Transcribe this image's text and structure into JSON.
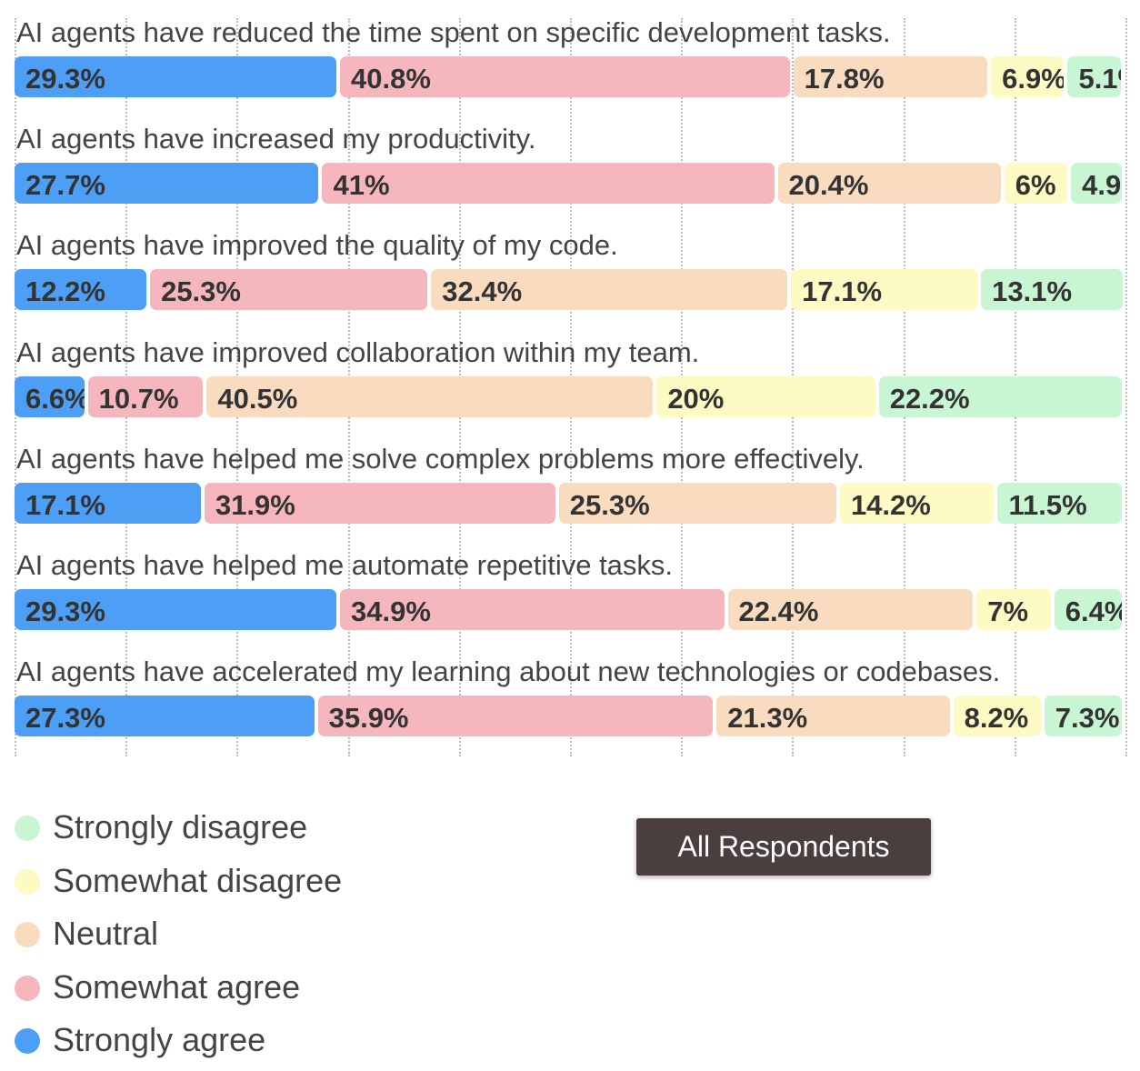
{
  "chart_data": {
    "type": "bar",
    "orientation": "horizontal",
    "stacked": true,
    "xlim": [
      0,
      100
    ],
    "grid": true,
    "legend_position": "bottom-left",
    "categories": [
      "AI agents have reduced the time spent on specific development tasks.",
      "AI agents have increased my productivity.",
      "AI agents have improved the quality of my code.",
      "AI agents have improved collaboration within my team.",
      "AI agents have helped me solve complex problems more effectively.",
      "AI agents have helped me automate repetitive tasks.",
      "AI agents have accelerated my learning about new technologies or codebases."
    ],
    "series": [
      {
        "name": "Strongly agree",
        "color": "#4d9ef5",
        "values": [
          29.3,
          27.7,
          12.2,
          6.6,
          17.1,
          29.3,
          27.3
        ]
      },
      {
        "name": "Somewhat agree",
        "color": "#f5b7bd",
        "values": [
          40.8,
          41,
          25.3,
          10.7,
          31.9,
          34.9,
          35.9
        ]
      },
      {
        "name": "Neutral",
        "color": "#f9dcc0",
        "values": [
          17.8,
          20.4,
          32.4,
          40.5,
          25.3,
          22.4,
          21.3
        ]
      },
      {
        "name": "Somewhat disagree",
        "color": "#fdfac4",
        "values": [
          6.9,
          6,
          17.1,
          20,
          14.2,
          7,
          8.2
        ]
      },
      {
        "name": "Strongly disagree",
        "color": "#c8f5d2",
        "values": [
          5.1,
          4.9,
          13.1,
          22.2,
          11.5,
          6.4,
          7.3
        ]
      }
    ],
    "legend_order": [
      "Strongly disagree",
      "Somewhat disagree",
      "Neutral",
      "Somewhat agree",
      "Strongly agree"
    ]
  },
  "tooltip": {
    "text": "All Respondents"
  }
}
